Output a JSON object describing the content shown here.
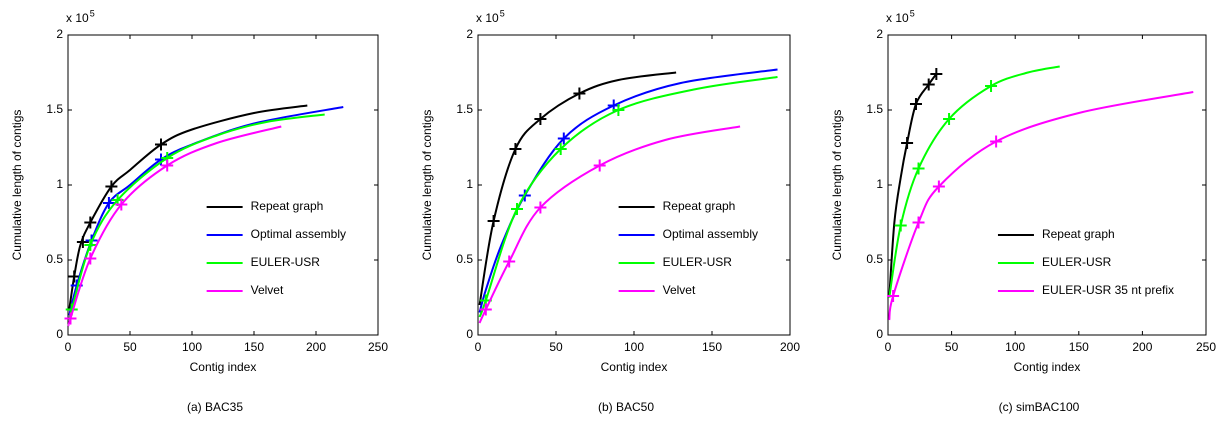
{
  "chart_data": [
    {
      "type": "line",
      "caption": "(a) BAC35",
      "x_label": "Contig index",
      "y_label": "Cumulative length of contigs",
      "y_multiplier": "x 10",
      "y_multiplier_exponent": "5",
      "xlim": [
        0,
        250
      ],
      "xticks": [
        0,
        50,
        100,
        150,
        200,
        250
      ],
      "ylim": [
        0,
        2
      ],
      "yticks": [
        0,
        0.5,
        1,
        1.5,
        2
      ],
      "legend_position": "lower right",
      "series": [
        {
          "name": "Repeat graph",
          "color": "#000000",
          "x": [
            1,
            5,
            10,
            18,
            35,
            50,
            75,
            100,
            150,
            193
          ],
          "values": [
            0.17,
            0.39,
            0.6,
            0.75,
            0.99,
            1.1,
            1.27,
            1.37,
            1.48,
            1.53
          ],
          "marker_x": [
            5,
            12,
            18,
            35,
            75
          ],
          "marker_values": [
            0.39,
            0.62,
            0.75,
            0.99,
            1.27
          ]
        },
        {
          "name": "Optimal assembly",
          "color": "#0000ff",
          "x": [
            1,
            7,
            19,
            33,
            50,
            75,
            100,
            150,
            222
          ],
          "values": [
            0.13,
            0.33,
            0.63,
            0.88,
            1.0,
            1.17,
            1.27,
            1.41,
            1.52
          ],
          "marker_x": [
            7,
            19,
            33,
            75
          ],
          "marker_values": [
            0.33,
            0.63,
            0.88,
            1.17
          ]
        },
        {
          "name": "EULER-USR",
          "color": "#00ff00",
          "x": [
            1,
            3,
            18,
            40,
            80,
            120,
            160,
            207
          ],
          "values": [
            0.1,
            0.17,
            0.6,
            0.9,
            1.18,
            1.33,
            1.42,
            1.47
          ],
          "marker_x": [
            3,
            18,
            40,
            80
          ],
          "marker_values": [
            0.17,
            0.6,
            0.9,
            1.18
          ]
        },
        {
          "name": "Velvet",
          "color": "#ff00ff",
          "x": [
            1,
            2,
            18,
            43,
            80,
            120,
            172
          ],
          "values": [
            0.07,
            0.11,
            0.51,
            0.87,
            1.13,
            1.28,
            1.39
          ],
          "marker_x": [
            2,
            18,
            43,
            80
          ],
          "marker_values": [
            0.11,
            0.51,
            0.87,
            1.13
          ]
        }
      ]
    },
    {
      "type": "line",
      "caption": "(b) BAC50",
      "x_label": "Contig index",
      "y_label": "Cumulative length of contigs",
      "y_multiplier": "x 10",
      "y_multiplier_exponent": "5",
      "xlim": [
        0,
        200
      ],
      "xticks": [
        0,
        50,
        100,
        150,
        200
      ],
      "ylim": [
        0,
        2
      ],
      "yticks": [
        0,
        0.5,
        1,
        1.5,
        2
      ],
      "legend_position": "lower right",
      "series": [
        {
          "name": "Repeat graph",
          "color": "#000000",
          "x": [
            1,
            10,
            24,
            40,
            65,
            90,
            127
          ],
          "values": [
            0.2,
            0.76,
            1.24,
            1.44,
            1.61,
            1.7,
            1.75
          ],
          "marker_x": [
            10,
            24,
            40,
            65
          ],
          "marker_values": [
            0.76,
            1.24,
            1.44,
            1.61
          ]
        },
        {
          "name": "Optimal assembly",
          "color": "#0000ff",
          "x": [
            1,
            5,
            15,
            30,
            55,
            87,
            130,
            192
          ],
          "values": [
            0.15,
            0.3,
            0.6,
            0.93,
            1.31,
            1.53,
            1.68,
            1.77
          ],
          "marker_x": [
            30,
            55,
            87
          ],
          "marker_values": [
            0.93,
            1.31,
            1.53
          ]
        },
        {
          "name": "EULER-USR",
          "color": "#00ff00",
          "x": [
            1,
            5,
            25,
            53,
            90,
            140,
            192
          ],
          "values": [
            0.12,
            0.23,
            0.84,
            1.24,
            1.5,
            1.64,
            1.72
          ],
          "marker_x": [
            5,
            25,
            53,
            90
          ],
          "marker_values": [
            0.23,
            0.84,
            1.24,
            1.5
          ]
        },
        {
          "name": "Velvet",
          "color": "#ff00ff",
          "x": [
            1,
            5,
            20,
            40,
            78,
            120,
            168
          ],
          "values": [
            0.08,
            0.17,
            0.49,
            0.85,
            1.13,
            1.3,
            1.39
          ],
          "marker_x": [
            5,
            20,
            40,
            78
          ],
          "marker_values": [
            0.17,
            0.49,
            0.85,
            1.13
          ]
        }
      ]
    },
    {
      "type": "line",
      "caption": "(c) simBAC100",
      "x_label": "Contig index",
      "y_label": "Cumulative length of contigs",
      "y_multiplier": "x 10",
      "y_multiplier_exponent": "5",
      "xlim": [
        0,
        250
      ],
      "xticks": [
        0,
        50,
        100,
        150,
        200,
        250
      ],
      "ylim": [
        0,
        2
      ],
      "yticks": [
        0,
        0.5,
        1,
        1.5,
        2
      ],
      "legend_position": "lower right",
      "series": [
        {
          "name": "Repeat graph",
          "color": "#000000",
          "x": [
            1,
            5,
            10,
            15,
            22,
            32,
            38
          ],
          "values": [
            0.25,
            0.75,
            1.05,
            1.28,
            1.54,
            1.67,
            1.74
          ],
          "marker_x": [
            15,
            22,
            32,
            38
          ],
          "marker_values": [
            1.28,
            1.54,
            1.67,
            1.74
          ]
        },
        {
          "name": "EULER-USR",
          "color": "#00ff00",
          "x": [
            1,
            10,
            24,
            48,
            81,
            110,
            135
          ],
          "values": [
            0.25,
            0.73,
            1.11,
            1.44,
            1.66,
            1.75,
            1.79
          ],
          "marker_x": [
            10,
            24,
            48,
            81
          ],
          "marker_values": [
            0.73,
            1.11,
            1.44,
            1.66
          ]
        },
        {
          "name": "EULER-USR 35 nt prefix",
          "color": "#ff00ff",
          "x": [
            1,
            4,
            24,
            40,
            85,
            150,
            240
          ],
          "values": [
            0.1,
            0.26,
            0.75,
            0.99,
            1.29,
            1.48,
            1.62
          ],
          "marker_x": [
            4,
            24,
            40,
            85
          ],
          "marker_values": [
            0.26,
            0.75,
            0.99,
            1.29
          ]
        }
      ]
    }
  ]
}
